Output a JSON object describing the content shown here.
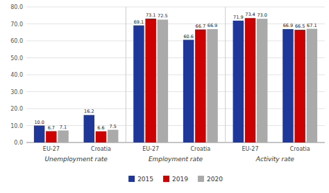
{
  "chart_data": [
    {
      "type": "bar",
      "x_label": "Unemployment rate",
      "categories": [
        "EU-27",
        "Croatia"
      ],
      "series": [
        {
          "name": "2015",
          "color": "#1e3799",
          "values": [
            10.0,
            16.2
          ],
          "value_labels": [
            "10.0",
            "16.2"
          ]
        },
        {
          "name": "2019",
          "color": "#cc0000",
          "values": [
            6.7,
            6.6
          ],
          "value_labels": [
            "6.7",
            "6.6"
          ]
        },
        {
          "name": "2020",
          "color": "#aaaaaa",
          "values": [
            7.1,
            7.5
          ],
          "value_labels": [
            "7.1",
            "7.5"
          ]
        }
      ],
      "ylim": [
        0,
        80
      ],
      "yticks": [
        {
          "value": 0,
          "label": "0.0"
        },
        {
          "value": 10,
          "label": "10.0"
        },
        {
          "value": 20,
          "label": "20.0"
        },
        {
          "value": 30,
          "label": "30.0"
        },
        {
          "value": 40,
          "label": "40.0"
        },
        {
          "value": 50,
          "label": "50.0"
        },
        {
          "value": 60,
          "label": "60.0"
        },
        {
          "value": 70,
          "label": "70.0"
        },
        {
          "value": 80,
          "label": "80.0"
        }
      ],
      "grid": true,
      "data_labels": true,
      "legend": "bottom"
    },
    {
      "type": "bar",
      "x_label": "Employment rate",
      "categories": [
        "EU-27",
        "Croatia"
      ],
      "series": [
        {
          "name": "2015",
          "color": "#1e3799",
          "values": [
            69.1,
            60.6
          ],
          "value_labels": [
            "69.1",
            "60.6"
          ]
        },
        {
          "name": "2019",
          "color": "#cc0000",
          "values": [
            73.1,
            66.7
          ],
          "value_labels": [
            "73.1",
            "66.7"
          ]
        },
        {
          "name": "2020",
          "color": "#aaaaaa",
          "values": [
            72.5,
            66.9
          ],
          "value_labels": [
            "72.5",
            "66.9"
          ]
        }
      ],
      "ylim": [
        0,
        80
      ],
      "yticks": [
        {
          "value": 0,
          "label": "0.0"
        },
        {
          "value": 10,
          "label": "10.0"
        },
        {
          "value": 20,
          "label": "20.0"
        },
        {
          "value": 30,
          "label": "30.0"
        },
        {
          "value": 40,
          "label": "40.0"
        },
        {
          "value": 50,
          "label": "50.0"
        },
        {
          "value": 60,
          "label": "60.0"
        },
        {
          "value": 70,
          "label": "70.0"
        },
        {
          "value": 80,
          "label": "80.0"
        }
      ],
      "grid": true,
      "data_labels": true,
      "tick_labels": "x"
    },
    {
      "type": "bar",
      "x_label": "Activity rate",
      "categories": [
        "EU-27",
        "Croatia"
      ],
      "series": [
        {
          "name": "2015",
          "color": "#1e3799",
          "values": [
            71.9,
            66.9
          ],
          "value_labels": [
            "71.9",
            "66.9"
          ]
        },
        {
          "name": "2019",
          "color": "#cc0000",
          "values": [
            73.4,
            66.5
          ],
          "value_labels": [
            "73.4",
            "66.5"
          ]
        },
        {
          "name": "2020",
          "color": "#aaaaaa",
          "values": [
            73.0,
            67.1
          ],
          "value_labels": [
            "73.0",
            "67.1"
          ]
        }
      ],
      "ylim": [
        0,
        80
      ],
      "yticks": [
        {
          "value": 0,
          "label": "0.0"
        },
        {
          "value": 10,
          "label": "10.0"
        },
        {
          "value": 20,
          "label": "20.0"
        },
        {
          "value": 30,
          "label": "30.0"
        },
        {
          "value": 40,
          "label": "40.0"
        },
        {
          "value": 50,
          "label": "50.0"
        },
        {
          "value": 60,
          "label": "60.0"
        },
        {
          "value": 70,
          "label": "70.0"
        },
        {
          "value": 80,
          "label": "80.0"
        }
      ],
      "grid": true,
      "data_labels": true,
      "tick_labels": "x"
    }
  ]
}
